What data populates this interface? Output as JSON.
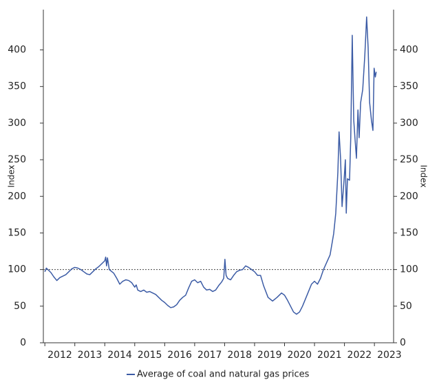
{
  "chart_data": {
    "type": "line",
    "ylabel": "Index",
    "y2label": "Index",
    "xlim": [
      2011.95,
      2023.64
    ],
    "xticks": [
      2012,
      2013,
      2014,
      2015,
      2016,
      2017,
      2018,
      2019,
      2020,
      2021,
      2022,
      2023
    ],
    "ylim": [
      0,
      455
    ],
    "yticks": [
      0,
      50,
      100,
      150,
      200,
      250,
      300,
      350,
      400
    ],
    "y2lim": [
      0,
      455
    ],
    "y2ticks": [
      0,
      50,
      100,
      150,
      200,
      250,
      300,
      350,
      400
    ],
    "reference_line": 100,
    "legend": "bottom",
    "x": [
      2012.0,
      2012.05,
      2012.1,
      2012.2,
      2012.3,
      2012.4,
      2012.5,
      2012.6,
      2012.7,
      2012.8,
      2012.9,
      2013.0,
      2013.1,
      2013.2,
      2013.3,
      2013.4,
      2013.5,
      2013.6,
      2013.7,
      2013.8,
      2013.9,
      2014.0,
      2014.03,
      2014.06,
      2014.09,
      2014.15,
      2014.3,
      2014.4,
      2014.5,
      2014.6,
      2014.7,
      2014.8,
      2014.9,
      2015.0,
      2015.05,
      2015.1,
      2015.2,
      2015.3,
      2015.4,
      2015.5,
      2015.6,
      2015.7,
      2015.8,
      2015.9,
      2016.0,
      2016.1,
      2016.2,
      2016.3,
      2016.4,
      2016.5,
      2016.6,
      2016.7,
      2016.8,
      2016.9,
      2017.0,
      2017.1,
      2017.2,
      2017.3,
      2017.4,
      2017.5,
      2017.6,
      2017.7,
      2017.8,
      2017.9,
      2017.97,
      2018.01,
      2018.05,
      2018.1,
      2018.2,
      2018.3,
      2018.4,
      2018.5,
      2018.6,
      2018.7,
      2018.8,
      2018.9,
      2019.0,
      2019.1,
      2019.2,
      2019.3,
      2019.45,
      2019.6,
      2019.75,
      2019.9,
      2020.0,
      2020.1,
      2020.2,
      2020.3,
      2020.4,
      2020.5,
      2020.6,
      2020.7,
      2020.8,
      2020.9,
      2021.0,
      2021.1,
      2021.2,
      2021.3,
      2021.52,
      2021.64,
      2021.71,
      2021.78,
      2021.82,
      2021.87,
      2021.92,
      2021.99,
      2022.03,
      2022.06,
      2022.1,
      2022.17,
      2022.21,
      2022.26,
      2022.31,
      2022.35,
      2022.4,
      2022.45,
      2022.49,
      2022.54,
      2022.61,
      2022.68,
      2022.74,
      2022.79,
      2022.84,
      2022.9,
      2022.95,
      2022.99,
      2023.03,
      2023.06
    ],
    "series": [
      {
        "name": "Average of coal and natural gas prices",
        "color": "#3b5ba5",
        "values": [
          97,
          102,
          100,
          96,
          90,
          85,
          89,
          91,
          93,
          97,
          101,
          103,
          102,
          100,
          97,
          94,
          93,
          97,
          101,
          104,
          108,
          112,
          117,
          105,
          116,
          100,
          95,
          88,
          80,
          84,
          86,
          85,
          82,
          76,
          79,
          72,
          70,
          72,
          69,
          70,
          68,
          66,
          62,
          58,
          55,
          51,
          48,
          49,
          52,
          58,
          62,
          65,
          75,
          84,
          86,
          82,
          84,
          76,
          72,
          73,
          70,
          72,
          78,
          83,
          88,
          114,
          92,
          88,
          86,
          92,
          97,
          99,
          100,
          105,
          103,
          100,
          97,
          92,
          92,
          78,
          62,
          57,
          62,
          68,
          65,
          58,
          50,
          42,
          39,
          42,
          50,
          60,
          70,
          80,
          84,
          80,
          88,
          100,
          120,
          149,
          177,
          233,
          288,
          252,
          186,
          224,
          250,
          177,
          224,
          222,
          280,
          420,
          304,
          280,
          252,
          318,
          280,
          328,
          346,
          393,
          445,
          403,
          328,
          304,
          290,
          375,
          363,
          370
        ]
      }
    ]
  }
}
